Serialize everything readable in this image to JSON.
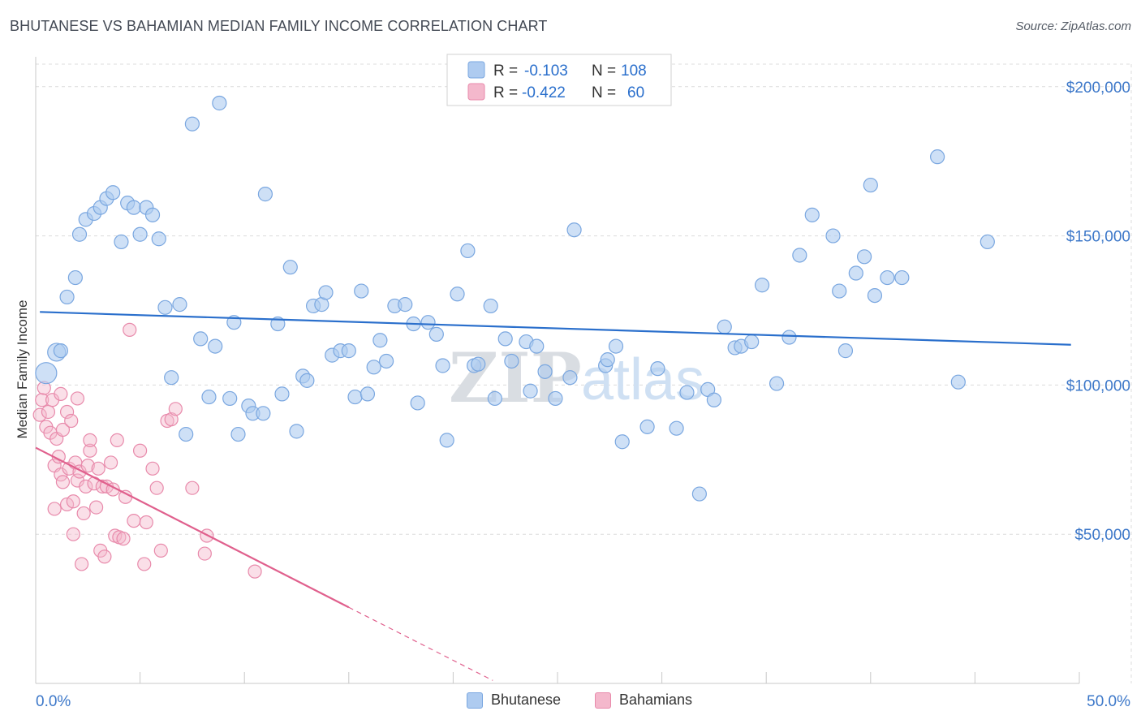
{
  "title": "BHUTANESE VS BAHAMIAN MEDIAN FAMILY INCOME CORRELATION CHART",
  "source": "Source: ZipAtlas.com",
  "watermark": {
    "zip": "ZIP",
    "atlas": "atlas"
  },
  "colors": {
    "blue": "#7aa7e0",
    "blue_fill": "#aecbf0",
    "blue_line": "#2a6fcc",
    "pink": "#e88aab",
    "pink_fill": "#f4b8cc",
    "pink_line": "#e0608d",
    "axis_text": "#3d78c9",
    "grid": "#dcdcdc"
  },
  "legend_box": [
    {
      "r_label": "R =",
      "r_value": "-0.103",
      "n_label": "N =",
      "n_value": "108"
    },
    {
      "r_label": "R =",
      "r_value": "-0.422",
      "n_label": "N =",
      "n_value": "60"
    }
  ],
  "chart_data": {
    "type": "scatter",
    "title": "BHUTANESE VS BAHAMIAN MEDIAN FAMILY INCOME CORRELATION CHART",
    "xlabel": "",
    "ylabel": "Median Family Income",
    "xlim": [
      0,
      50
    ],
    "ylim": [
      0,
      210000
    ],
    "x_tick_labels": [
      "0.0%",
      "50.0%"
    ],
    "y_ticks": [
      50000,
      100000,
      150000,
      200000
    ],
    "y_tick_labels": [
      "$50,000",
      "$100,000",
      "$150,000",
      "$200,000"
    ],
    "grid": true,
    "legend_position": "bottom",
    "series": [
      {
        "name": "Bhutanese",
        "color": "#7aa7e0",
        "trend": {
          "x": [
            0.2,
            49.6
          ],
          "y": [
            124500,
            113500
          ]
        },
        "points": [
          [
            0.5,
            104000
          ],
          [
            1.0,
            111000
          ],
          [
            1.2,
            111500
          ],
          [
            1.5,
            129500
          ],
          [
            1.9,
            136000
          ],
          [
            2.1,
            150500
          ],
          [
            2.4,
            155500
          ],
          [
            2.8,
            157500
          ],
          [
            3.1,
            159500
          ],
          [
            3.4,
            162500
          ],
          [
            3.7,
            164500
          ],
          [
            4.1,
            148000
          ],
          [
            4.4,
            161000
          ],
          [
            4.7,
            159500
          ],
          [
            5.0,
            150500
          ],
          [
            5.3,
            159500
          ],
          [
            5.6,
            157000
          ],
          [
            5.9,
            149000
          ],
          [
            6.2,
            126000
          ],
          [
            6.5,
            102500
          ],
          [
            6.9,
            127000
          ],
          [
            7.2,
            83500
          ],
          [
            7.5,
            187500
          ],
          [
            7.9,
            115500
          ],
          [
            8.3,
            96000
          ],
          [
            8.6,
            113000
          ],
          [
            8.8,
            194500
          ],
          [
            9.3,
            95500
          ],
          [
            9.5,
            121000
          ],
          [
            9.7,
            83500
          ],
          [
            10.2,
            93000
          ],
          [
            10.4,
            90500
          ],
          [
            10.9,
            90500
          ],
          [
            11.0,
            164000
          ],
          [
            11.6,
            120500
          ],
          [
            11.8,
            97000
          ],
          [
            12.2,
            139500
          ],
          [
            12.5,
            84500
          ],
          [
            12.8,
            103000
          ],
          [
            13.0,
            101500
          ],
          [
            13.3,
            126500
          ],
          [
            13.7,
            127000
          ],
          [
            13.9,
            131000
          ],
          [
            14.2,
            110000
          ],
          [
            14.6,
            111500
          ],
          [
            15.0,
            111500
          ],
          [
            15.3,
            96000
          ],
          [
            15.6,
            131500
          ],
          [
            15.9,
            97000
          ],
          [
            16.2,
            106000
          ],
          [
            16.5,
            115000
          ],
          [
            16.8,
            108000
          ],
          [
            17.2,
            126500
          ],
          [
            17.7,
            127000
          ],
          [
            18.1,
            120500
          ],
          [
            18.3,
            94000
          ],
          [
            18.8,
            121000
          ],
          [
            19.2,
            117000
          ],
          [
            19.5,
            106500
          ],
          [
            19.7,
            81500
          ],
          [
            20.2,
            130500
          ],
          [
            20.7,
            145000
          ],
          [
            21.0,
            106500
          ],
          [
            21.2,
            107000
          ],
          [
            21.8,
            126500
          ],
          [
            22.0,
            95500
          ],
          [
            22.5,
            115500
          ],
          [
            22.8,
            108000
          ],
          [
            23.5,
            114500
          ],
          [
            23.7,
            98000
          ],
          [
            24.0,
            113000
          ],
          [
            24.4,
            104500
          ],
          [
            24.9,
            95500
          ],
          [
            25.6,
            102500
          ],
          [
            25.8,
            152000
          ],
          [
            27.3,
            106500
          ],
          [
            27.4,
            108500
          ],
          [
            27.8,
            113000
          ],
          [
            28.1,
            81000
          ],
          [
            29.3,
            86000
          ],
          [
            29.8,
            105500
          ],
          [
            30.7,
            85500
          ],
          [
            31.2,
            97500
          ],
          [
            31.8,
            63500
          ],
          [
            32.2,
            98500
          ],
          [
            32.5,
            95000
          ],
          [
            33.0,
            119500
          ],
          [
            33.5,
            112500
          ],
          [
            33.8,
            113000
          ],
          [
            34.3,
            114500
          ],
          [
            34.8,
            133500
          ],
          [
            35.5,
            100500
          ],
          [
            36.1,
            116000
          ],
          [
            36.6,
            143500
          ],
          [
            37.2,
            157000
          ],
          [
            38.2,
            150000
          ],
          [
            38.5,
            131500
          ],
          [
            38.8,
            111500
          ],
          [
            39.3,
            137500
          ],
          [
            39.7,
            143000
          ],
          [
            40.0,
            167000
          ],
          [
            40.2,
            130000
          ],
          [
            40.8,
            136000
          ],
          [
            41.5,
            136000
          ],
          [
            43.2,
            176500
          ],
          [
            44.2,
            101000
          ],
          [
            45.6,
            148000
          ]
        ]
      },
      {
        "name": "Bahamians",
        "color": "#e88aab",
        "trend": {
          "x": [
            0.0,
            15.0
          ],
          "y": [
            79000,
            25500
          ],
          "dash_to": {
            "x": 21.9,
            "y": 1000
          }
        },
        "points": [
          [
            0.2,
            90000
          ],
          [
            0.3,
            95000
          ],
          [
            0.5,
            86000
          ],
          [
            0.6,
            91000
          ],
          [
            0.7,
            84000
          ],
          [
            0.8,
            95000
          ],
          [
            0.9,
            73000
          ],
          [
            1.0,
            82000
          ],
          [
            1.1,
            76000
          ],
          [
            1.2,
            70000
          ],
          [
            1.3,
            85000
          ],
          [
            1.3,
            67500
          ],
          [
            1.5,
            91000
          ],
          [
            1.5,
            60000
          ],
          [
            1.6,
            72000
          ],
          [
            1.7,
            88000
          ],
          [
            1.8,
            61000
          ],
          [
            1.8,
            50000
          ],
          [
            1.9,
            74000
          ],
          [
            2.0,
            68000
          ],
          [
            2.1,
            71000
          ],
          [
            2.2,
            40000
          ],
          [
            2.3,
            57000
          ],
          [
            2.4,
            66000
          ],
          [
            2.5,
            73000
          ],
          [
            2.6,
            78000
          ],
          [
            2.6,
            81500
          ],
          [
            2.8,
            67000
          ],
          [
            2.9,
            59000
          ],
          [
            3.0,
            72000
          ],
          [
            3.1,
            44500
          ],
          [
            3.2,
            66000
          ],
          [
            3.3,
            42500
          ],
          [
            3.4,
            66000
          ],
          [
            3.6,
            74000
          ],
          [
            3.7,
            65000
          ],
          [
            3.8,
            49500
          ],
          [
            3.9,
            81500
          ],
          [
            4.0,
            49000
          ],
          [
            4.2,
            48500
          ],
          [
            4.3,
            62500
          ],
          [
            4.5,
            118500
          ],
          [
            4.7,
            54500
          ],
          [
            5.0,
            78000
          ],
          [
            5.2,
            40000
          ],
          [
            5.3,
            54000
          ],
          [
            5.6,
            72000
          ],
          [
            5.8,
            65500
          ],
          [
            6.0,
            44500
          ],
          [
            6.3,
            88000
          ],
          [
            6.5,
            88500
          ],
          [
            6.7,
            92000
          ],
          [
            7.5,
            65500
          ],
          [
            8.1,
            43500
          ],
          [
            8.2,
            49500
          ],
          [
            10.5,
            37500
          ],
          [
            0.4,
            99000
          ],
          [
            1.2,
            97000
          ],
          [
            2.0,
            95500
          ],
          [
            0.9,
            58500
          ]
        ]
      }
    ]
  },
  "legend_bottom": [
    "Bhutanese",
    "Bahamians"
  ]
}
